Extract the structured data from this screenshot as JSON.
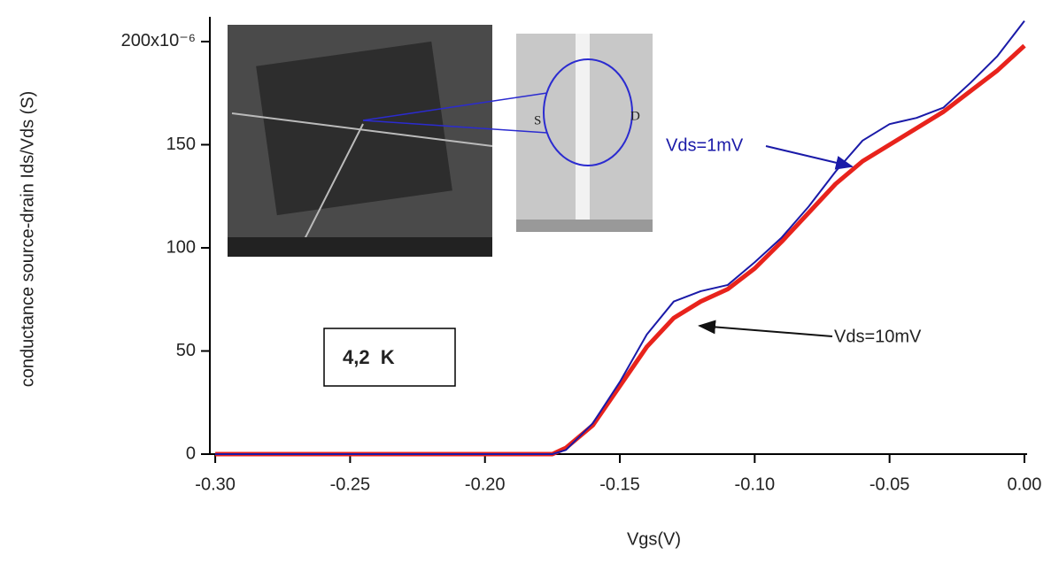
{
  "chart_data": {
    "type": "line",
    "x_label": "Vgs(V)",
    "y_label": "conductance source-drain Ids/Vds (S)",
    "x": [
      -0.3,
      -0.25,
      -0.2,
      -0.175,
      -0.17,
      -0.16,
      -0.15,
      -0.14,
      -0.13,
      -0.12,
      -0.11,
      -0.1,
      -0.09,
      -0.08,
      -0.07,
      -0.06,
      -0.05,
      -0.04,
      -0.03,
      -0.02,
      -0.01,
      0.0
    ],
    "series": [
      {
        "name": "Vds=10mV",
        "color": "#e8231c",
        "values": [
          0,
          0,
          0,
          0,
          3,
          14,
          33,
          52,
          66,
          74,
          80,
          90,
          103,
          117,
          131,
          142,
          150,
          158,
          166,
          176,
          186,
          198
        ]
      },
      {
        "name": "Vds=1mV",
        "color": "#1a1aa8",
        "values": [
          0,
          0,
          0,
          0,
          2,
          15,
          35,
          58,
          74,
          79,
          82,
          93,
          105,
          120,
          137,
          152,
          160,
          163,
          168,
          180,
          193,
          210
        ]
      }
    ],
    "xlim": [
      -0.302,
      0.001
    ],
    "ylim": [
      0,
      212
    ],
    "xticks": [
      {
        "value": -0.3,
        "label": "-0.30"
      },
      {
        "value": -0.25,
        "label": "-0.25"
      },
      {
        "value": -0.2,
        "label": "-0.20"
      },
      {
        "value": -0.15,
        "label": "-0.15"
      },
      {
        "value": -0.1,
        "label": "-0.10"
      },
      {
        "value": -0.05,
        "label": "-0.05"
      },
      {
        "value": 0.0,
        "label": "0.00"
      }
    ],
    "yticks": [
      0,
      50,
      100,
      150,
      {
        "value": 200,
        "label": "200x10⁻⁶"
      }
    ],
    "annotations": [
      "Vds=1mV",
      "Vds=10mV",
      "4,2  K",
      "S",
      "D"
    ]
  }
}
